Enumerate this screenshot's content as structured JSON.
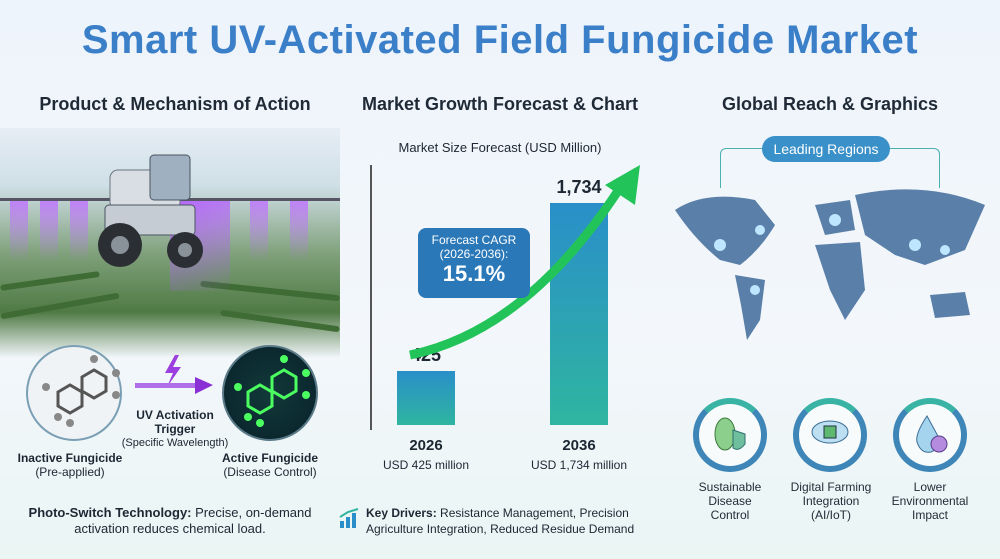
{
  "title": "Smart UV-Activated Field Fungicide Market",
  "sections": {
    "left": "Product & Mechanism of Action",
    "middle": "Market Growth Forecast & Chart",
    "right": "Global Reach & Graphics"
  },
  "mechanism": {
    "inactive_label": "Inactive Fungicide",
    "inactive_sub": "(Pre-applied)",
    "trigger_label1": "UV Activation",
    "trigger_label2": "Trigger",
    "trigger_sub": "(Specific Wavelength)",
    "active_label": "Active Fungicide",
    "active_sub": "(Disease Control)",
    "note_bold": "Photo-Switch Technology:",
    "note_text": " Precise, on-demand activation reduces chemical load."
  },
  "chart_data": {
    "type": "bar",
    "title": "Market Size Forecast (USD Million)",
    "categories": [
      "2026",
      "2036"
    ],
    "values": [
      425,
      1734
    ],
    "data_labels": [
      "425",
      "1,734"
    ],
    "sub_labels": [
      "USD 425 million",
      "USD 1,734 million"
    ],
    "colors": [
      "#2a8fc9",
      "#2fb5a0"
    ]
  },
  "cagr": {
    "label1": "Forecast CAGR",
    "label2": "(2026-2036):",
    "value": "15.1%"
  },
  "drivers": {
    "bold": "Key Drivers:",
    "text": " Resistance Management, Precision Agriculture Integration, Reduced Residue Demand"
  },
  "map": {
    "badge": "Leading Regions"
  },
  "features": [
    {
      "label1": "Sustainable",
      "label2": "Disease",
      "label3": "Control",
      "icon": "leaf-shield-icon"
    },
    {
      "label1": "Digital Farming",
      "label2": "Integration",
      "label3": "(AI/IoT)",
      "icon": "cloud-chip-icon"
    },
    {
      "label1": "Lower",
      "label2": "Environmental",
      "label3": "Impact",
      "icon": "water-drop-x-icon"
    }
  ]
}
